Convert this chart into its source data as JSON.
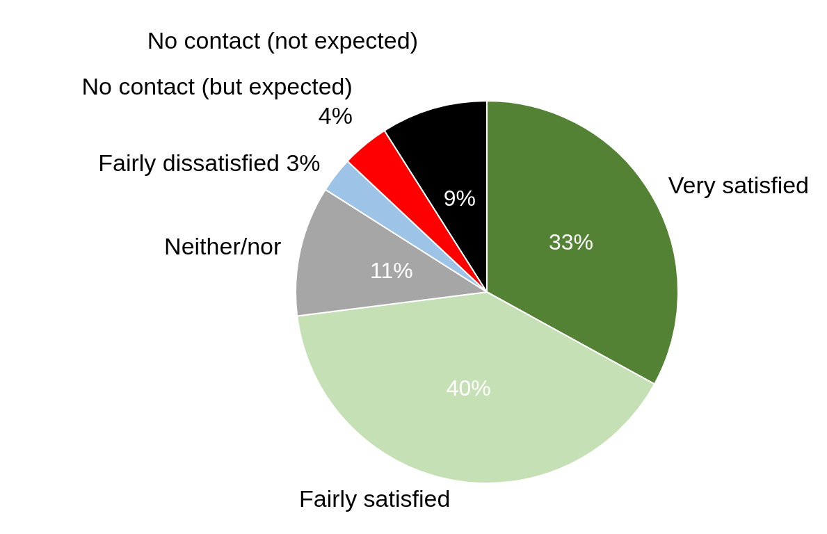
{
  "chart_data": {
    "type": "pie",
    "categories": [
      "Very satisfied",
      "Fairly satisfied",
      "Neither/nor",
      "Fairly dissatisfied",
      "No contact (but expected)",
      "No contact (not expected)"
    ],
    "values": [
      33,
      40,
      11,
      3,
      4,
      9
    ],
    "colors": [
      "#548235",
      "#c5e0b4",
      "#a6a6a6",
      "#9dc3e6",
      "#ff0000",
      "#000000"
    ],
    "value_labels": [
      "33%",
      "40%",
      "11%",
      "3%",
      "4%",
      "9%"
    ],
    "legend": false
  }
}
